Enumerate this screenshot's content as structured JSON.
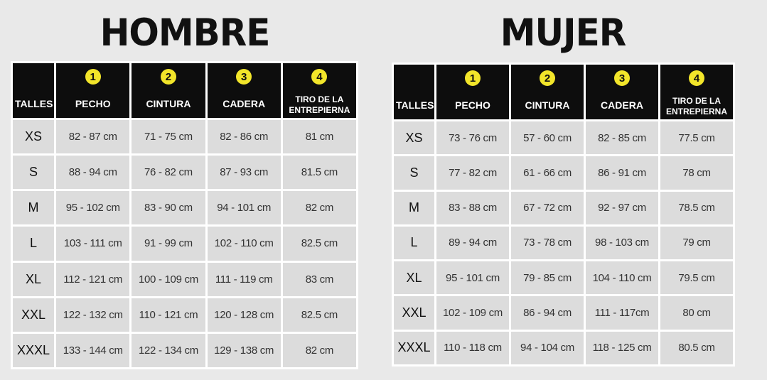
{
  "hombre": {
    "title": "HOMBRE",
    "headers": {
      "talles": "TALLES",
      "columns": [
        {
          "num": "1",
          "label": "PECHO"
        },
        {
          "num": "2",
          "label": "CINTURA"
        },
        {
          "num": "3",
          "label": "CADERA"
        },
        {
          "num": "4",
          "label": "TIRO DE LA ENTREPIERNA"
        }
      ]
    },
    "rows": [
      {
        "size": "XS",
        "pecho": "82 - 87 cm",
        "cintura": "71 - 75 cm",
        "cadera": "82 - 86 cm",
        "tiro": "81 cm"
      },
      {
        "size": "S",
        "pecho": "88 - 94 cm",
        "cintura": "76 - 82 cm",
        "cadera": "87 - 93 cm",
        "tiro": "81.5 cm"
      },
      {
        "size": "M",
        "pecho": "95 - 102 cm",
        "cintura": "83 - 90 cm",
        "cadera": "94 - 101 cm",
        "tiro": "82 cm"
      },
      {
        "size": "L",
        "pecho": "103 - 111 cm",
        "cintura": "91 - 99 cm",
        "cadera": "102 - 110 cm",
        "tiro": "82.5 cm"
      },
      {
        "size": "XL",
        "pecho": "112 - 121 cm",
        "cintura": "100 - 109 cm",
        "cadera": "111 - 119 cm",
        "tiro": "83 cm"
      },
      {
        "size": "XXL",
        "pecho": "122 - 132 cm",
        "cintura": "110 - 121 cm",
        "cadera": "120 - 128 cm",
        "tiro": "82.5 cm"
      },
      {
        "size": "XXXL",
        "pecho": "133 - 144 cm",
        "cintura": "122 - 134 cm",
        "cadera": "129 - 138 cm",
        "tiro": "82 cm"
      }
    ]
  },
  "mujer": {
    "title": "MUJER",
    "headers": {
      "talles": "TALLES",
      "columns": [
        {
          "num": "1",
          "label": "PECHO"
        },
        {
          "num": "2",
          "label": "CINTURA"
        },
        {
          "num": "3",
          "label": "CADERA"
        },
        {
          "num": "4",
          "label": "TIRO DE LA ENTREPIERNA"
        }
      ]
    },
    "rows": [
      {
        "size": "XS",
        "pecho": "73 - 76 cm",
        "cintura": "57 - 60 cm",
        "cadera": "82 - 85 cm",
        "tiro": "77.5 cm"
      },
      {
        "size": "S",
        "pecho": "77 - 82 cm",
        "cintura": "61 - 66 cm",
        "cadera": "86 - 91 cm",
        "tiro": "78 cm"
      },
      {
        "size": "M",
        "pecho": "83 - 88 cm",
        "cintura": "67 - 72 cm",
        "cadera": "92 - 97 cm",
        "tiro": "78.5 cm"
      },
      {
        "size": "L",
        "pecho": "89 - 94 cm",
        "cintura": "73 - 78 cm",
        "cadera": "98 - 103 cm",
        "tiro": "79 cm"
      },
      {
        "size": "XL",
        "pecho": "95 - 101 cm",
        "cintura": "79 - 85 cm",
        "cadera": "104 - 110 cm",
        "tiro": "79.5 cm"
      },
      {
        "size": "XXL",
        "pecho": "102 - 109 cm",
        "cintura": "86 - 94 cm",
        "cadera": "111 - 117cm",
        "tiro": "80 cm"
      },
      {
        "size": "XXXL",
        "pecho": "110 - 118 cm",
        "cintura": "94 - 104 cm",
        "cadera": "118 - 125 cm",
        "tiro": "80.5 cm"
      }
    ]
  },
  "colors": {
    "header_bg": "#0d0d0d",
    "badge": "#f2e52a",
    "cell_bg": "#dcdcdc",
    "page_bg": "#e9e9e9"
  }
}
